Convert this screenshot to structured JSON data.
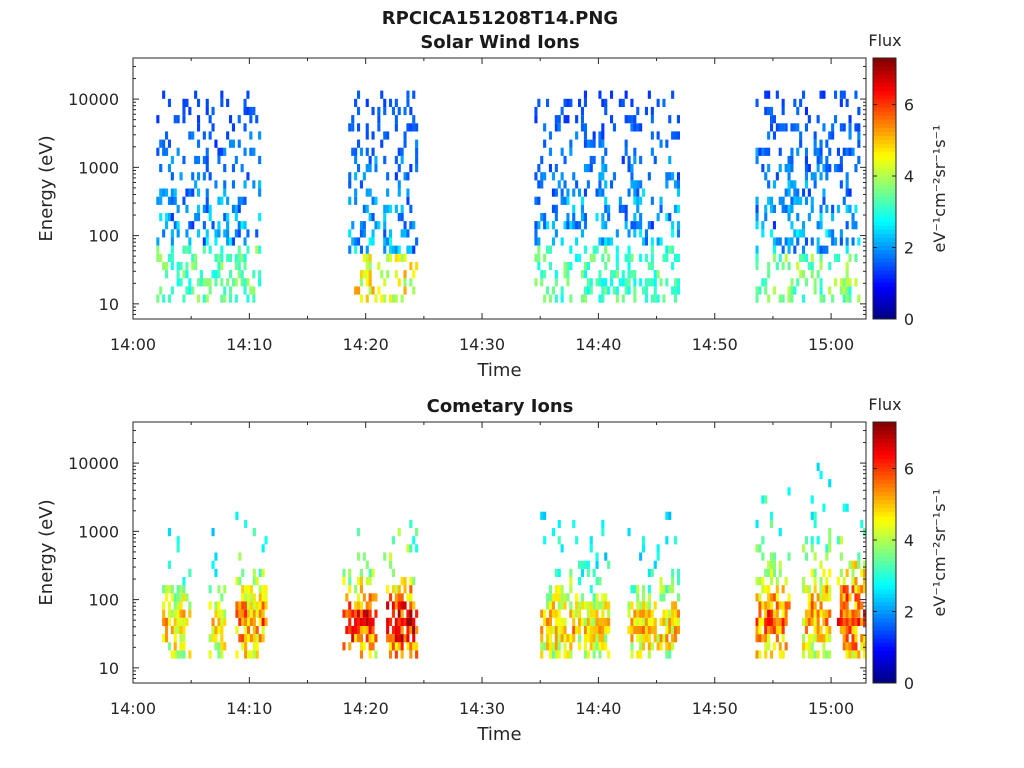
{
  "figure_title": "RPCICA151208T14.PNG",
  "chart_data": [
    {
      "type": "heatmap",
      "title": "Solar Wind Ions",
      "xlabel": "Time",
      "ylabel": "Energy (eV)",
      "x_ticks": [
        "14:00",
        "14:10",
        "14:20",
        "14:30",
        "14:40",
        "14:50",
        "15:00"
      ],
      "x_range_minutes": [
        0,
        63
      ],
      "y_ticks": [
        "10",
        "100",
        "1000",
        "10000"
      ],
      "y_scale": "log",
      "y_range": [
        6,
        40000
      ],
      "colorbar": {
        "label": "Flux",
        "unit": "eV⁻¹cm⁻²sr⁻¹s⁻¹",
        "range": [
          0,
          7.3
        ],
        "ticks": [
          "0",
          "2",
          "4",
          "6"
        ],
        "colormap": "jet"
      },
      "activity_intervals": [
        {
          "start": 2.0,
          "end": 11.0,
          "emin": 10,
          "emax": 15000,
          "peak_flux": 4.0
        },
        {
          "start": 18.5,
          "end": 24.5,
          "emin": 10,
          "emax": 14000,
          "peak_flux": 5.3
        },
        {
          "start": 34.5,
          "end": 47.0,
          "emin": 10,
          "emax": 15000,
          "peak_flux": 3.8
        },
        {
          "start": 53.5,
          "end": 62.5,
          "emin": 10,
          "emax": 14000,
          "peak_flux": 4.2
        }
      ]
    },
    {
      "type": "heatmap",
      "title": "Cometary Ions",
      "xlabel": "Time",
      "ylabel": "Energy (eV)",
      "x_ticks": [
        "14:00",
        "14:10",
        "14:20",
        "14:30",
        "14:40",
        "14:50",
        "15:00"
      ],
      "x_range_minutes": [
        0,
        63
      ],
      "y_ticks": [
        "10",
        "100",
        "1000",
        "10000"
      ],
      "y_scale": "log",
      "y_range": [
        6,
        40000
      ],
      "colorbar": {
        "label": "Flux",
        "unit": "eV⁻¹cm⁻²sr⁻¹s⁻¹",
        "range": [
          0,
          7.3
        ],
        "ticks": [
          "0",
          "2",
          "4",
          "6"
        ],
        "colormap": "jet"
      },
      "activity_intervals": [
        {
          "start": 2.5,
          "end": 5.0,
          "emin": 12,
          "emax": 1500,
          "peak_flux": 5.2
        },
        {
          "start": 6.5,
          "end": 8.0,
          "emin": 12,
          "emax": 1000,
          "peak_flux": 5.0
        },
        {
          "start": 8.8,
          "end": 11.5,
          "emin": 12,
          "emax": 2500,
          "peak_flux": 5.8
        },
        {
          "start": 18.0,
          "end": 21.0,
          "emin": 15,
          "emax": 1200,
          "peak_flux": 6.5
        },
        {
          "start": 21.5,
          "end": 24.5,
          "emin": 15,
          "emax": 1300,
          "peak_flux": 6.8
        },
        {
          "start": 35.0,
          "end": 37.8,
          "emin": 12,
          "emax": 2000,
          "peak_flux": 5.3
        },
        {
          "start": 38.0,
          "end": 41.0,
          "emin": 12,
          "emax": 1500,
          "peak_flux": 5.0
        },
        {
          "start": 42.5,
          "end": 45.0,
          "emin": 12,
          "emax": 1200,
          "peak_flux": 5.2
        },
        {
          "start": 45.0,
          "end": 47.0,
          "emin": 12,
          "emax": 1800,
          "peak_flux": 5.2
        },
        {
          "start": 53.5,
          "end": 56.5,
          "emin": 12,
          "emax": 4000,
          "peak_flux": 6.0
        },
        {
          "start": 57.5,
          "end": 60.0,
          "emin": 12,
          "emax": 9000,
          "peak_flux": 5.5
        },
        {
          "start": 60.5,
          "end": 63.0,
          "emin": 12,
          "emax": 6000,
          "peak_flux": 6.2
        }
      ]
    }
  ]
}
